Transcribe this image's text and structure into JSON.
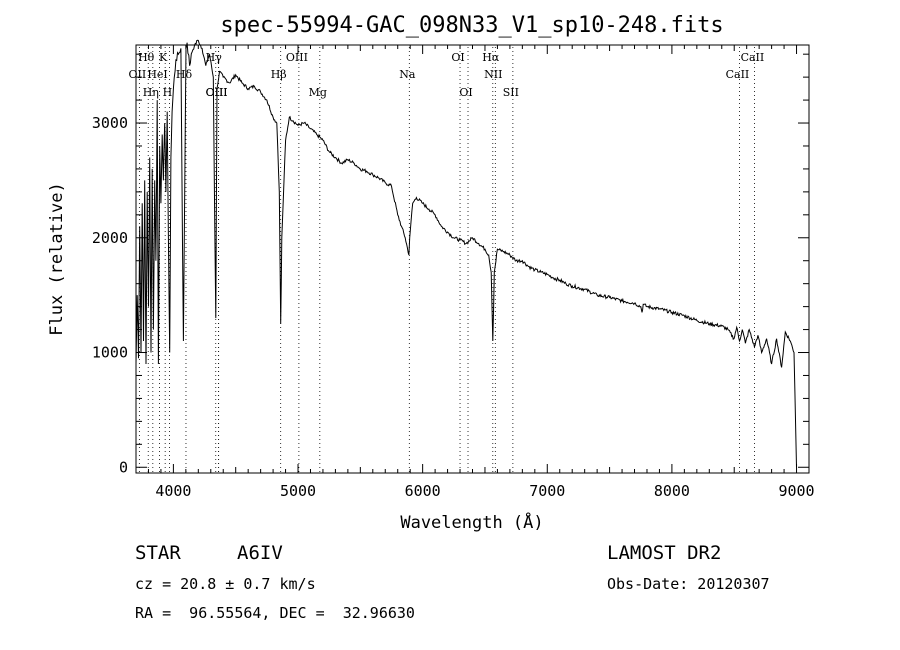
{
  "chart_data": {
    "type": "line",
    "title": "spec-55994-GAC_098N33_V1_sp10-248.fits",
    "xlabel": "Wavelength (Å)",
    "ylabel": "Flux (relative)",
    "xlim": [
      3700,
      9100
    ],
    "ylim": [
      -50,
      3680
    ],
    "xticks": [
      4000,
      5000,
      6000,
      7000,
      8000,
      9000
    ],
    "yticks": [
      0,
      1000,
      2000,
      3000
    ],
    "grid": false,
    "series": [
      {
        "x": [
          3700,
          3710,
          3720,
          3730,
          3740,
          3750,
          3760,
          3770,
          3780,
          3790,
          3800,
          3810,
          3820,
          3830,
          3840,
          3850,
          3860,
          3870,
          3880,
          3890,
          3900,
          3910,
          3920,
          3930,
          3940,
          3950,
          3960,
          3970,
          3980,
          3990,
          4000,
          4020,
          4040,
          4060,
          4080,
          4101,
          4110,
          4130,
          4150,
          4170,
          4200,
          4230,
          4260,
          4290,
          4320,
          4340,
          4350,
          4370,
          4400,
          4450,
          4500,
          4550,
          4600,
          4650,
          4700,
          4750,
          4800,
          4830,
          4850,
          4861,
          4870,
          4900,
          4930,
          4960,
          5000,
          5050,
          5100,
          5150,
          5200,
          5250,
          5300,
          5350,
          5400,
          5450,
          5500,
          5550,
          5600,
          5650,
          5700,
          5750,
          5800,
          5830,
          5860,
          5890,
          5896,
          5920,
          5950,
          6000,
          6050,
          6100,
          6150,
          6200,
          6250,
          6300,
          6350,
          6400,
          6450,
          6500,
          6530,
          6550,
          6563,
          6575,
          6600,
          6650,
          6700,
          6750,
          6800,
          6850,
          6900,
          6950,
          7000,
          7050,
          7100,
          7150,
          7200,
          7300,
          7400,
          7500,
          7600,
          7700,
          7750,
          7760,
          7770,
          7800,
          7900,
          8000,
          8100,
          8200,
          8300,
          8400,
          8450,
          8498,
          8520,
          8542,
          8565,
          8590,
          8620,
          8662,
          8690,
          8720,
          8760,
          8800,
          8840,
          8880,
          8910,
          8950,
          8980,
          9000
        ],
        "y": [
          900,
          1500,
          950,
          2100,
          1000,
          2300,
          1100,
          2500,
          900,
          2400,
          1400,
          2700,
          1000,
          2600,
          1200,
          2500,
          1800,
          3200,
          900,
          2800,
          2300,
          2900,
          2500,
          3000,
          2400,
          3100,
          2000,
          1000,
          2700,
          3100,
          3300,
          3550,
          3600,
          3650,
          1100,
          3650,
          3700,
          3500,
          3620,
          3680,
          3720,
          3650,
          3500,
          3600,
          3400,
          1300,
          3300,
          3450,
          3400,
          3350,
          3420,
          3350,
          3300,
          3320,
          3270,
          3200,
          3050,
          3000,
          2400,
          1250,
          2000,
          2850,
          3050,
          3020,
          2980,
          3000,
          2950,
          2900,
          2850,
          2750,
          2700,
          2650,
          2680,
          2650,
          2600,
          2580,
          2550,
          2520,
          2480,
          2450,
          2200,
          2100,
          2000,
          1850,
          2000,
          2300,
          2350,
          2300,
          2250,
          2200,
          2100,
          2050,
          2000,
          1980,
          1950,
          2000,
          1950,
          1900,
          1850,
          1700,
          1100,
          1700,
          1900,
          1880,
          1850,
          1800,
          1800,
          1750,
          1720,
          1700,
          1680,
          1650,
          1630,
          1600,
          1580,
          1550,
          1500,
          1480,
          1450,
          1430,
          1400,
          1350,
          1420,
          1400,
          1380,
          1350,
          1320,
          1280,
          1250,
          1230,
          1200,
          1120,
          1220,
          1100,
          1200,
          1080,
          1200,
          1050,
          1150,
          1000,
          1120,
          900,
          1120,
          870,
          1180,
          1100,
          1000,
          0
        ]
      }
    ],
    "spectral_lines": [
      {
        "name": "Hθ",
        "wavelength": 3798,
        "row": 0
      },
      {
        "name": "K",
        "wavelength": 3934,
        "row": 0
      },
      {
        "name": "Hγ",
        "wavelength": 4340,
        "row": 0
      },
      {
        "name": "OIII",
        "wavelength": 5007,
        "row": 0
      },
      {
        "name": "OI",
        "wavelength": 6300,
        "row": 0
      },
      {
        "name": "Hα",
        "wavelength": 6563,
        "row": 0
      },
      {
        "name": "CaII",
        "wavelength": 8662,
        "row": 0
      },
      {
        "name": "OII",
        "wavelength": 3727,
        "row": 1
      },
      {
        "name": "HeI",
        "wavelength": 3889,
        "row": 1
      },
      {
        "name": "Hδ",
        "wavelength": 4101,
        "row": 1
      },
      {
        "name": "Hβ",
        "wavelength": 4861,
        "row": 1
      },
      {
        "name": "Na",
        "wavelength": 5893,
        "row": 1
      },
      {
        "name": "NII",
        "wavelength": 6583,
        "row": 1
      },
      {
        "name": "CaII",
        "wavelength": 8542,
        "row": 1
      },
      {
        "name": "OIII",
        "wavelength": 4363,
        "row": 2
      },
      {
        "name": "Hη",
        "wavelength": 3835,
        "row": 2
      },
      {
        "name": "H",
        "wavelength": 3968,
        "row": 2
      },
      {
        "name": "OIII",
        "wavelength": 4363,
        "row": 3
      },
      {
        "name": "Mg",
        "wavelength": 5175,
        "row": 3
      },
      {
        "name": "OI",
        "wavelength": 6364,
        "row": 3
      },
      {
        "name": "SII",
        "wavelength": 6724,
        "row": 3
      }
    ]
  },
  "info": {
    "object_class": "STAR",
    "subclass": "A6IV",
    "survey": "LAMOST DR2",
    "redshift": "cz = 20.8 ± 0.7 km/s",
    "obs_date": "Obs-Date: 20120307",
    "coords": "RA =  96.55564, DEC =  32.96630"
  }
}
